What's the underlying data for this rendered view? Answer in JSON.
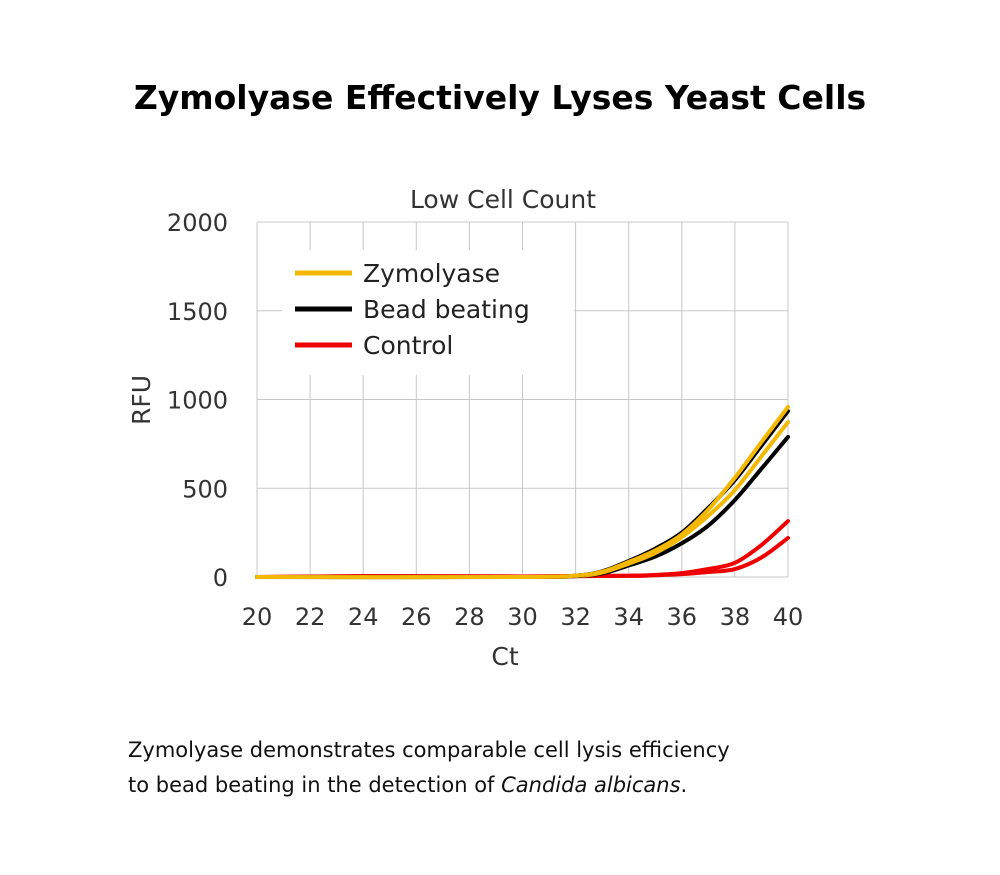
{
  "title": "Zymolyase Effectively Lyses Yeast Cells",
  "caption": {
    "line1": "Zymolyase demonstrates comparable cell lysis efficiency",
    "line2_prefix": "to bead beating in the detection of ",
    "line2_italic": "Candida albicans",
    "line2_suffix": "."
  },
  "chart_data": {
    "type": "line",
    "title": "Low Cell Count",
    "xlabel": "Ct",
    "ylabel": "RFU",
    "xlim": [
      20,
      40
    ],
    "ylim": [
      0,
      2000
    ],
    "xticks": [
      20,
      22,
      24,
      26,
      28,
      30,
      32,
      34,
      36,
      38,
      40
    ],
    "yticks": [
      0,
      500,
      1000,
      1500,
      2000
    ],
    "grid": true,
    "legend_position": "top-left",
    "legend": [
      {
        "label": "Zymolyase",
        "color": "#F5B800"
      },
      {
        "label": "Bead beating",
        "color": "#000000"
      },
      {
        "label": "Control",
        "color": "#EE0000"
      }
    ],
    "series": [
      {
        "group": "Zymolyase",
        "color": "#F5B800",
        "x": [
          20,
          30,
          32,
          33,
          34,
          35,
          36,
          37,
          38,
          39,
          40
        ],
        "y": [
          0,
          0,
          8,
          30,
          85,
          150,
          240,
          380,
          560,
          760,
          958
        ]
      },
      {
        "group": "Zymolyase",
        "color": "#F5B800",
        "x": [
          20,
          30,
          32,
          33,
          34,
          35,
          36,
          37,
          38,
          39,
          40
        ],
        "y": [
          0,
          0,
          6,
          25,
          75,
          135,
          225,
          345,
          490,
          680,
          873
        ]
      },
      {
        "group": "Bead beating",
        "color": "#000000",
        "x": [
          20,
          30,
          32,
          33,
          34,
          35,
          36,
          37,
          38,
          39,
          40
        ],
        "y": [
          0,
          0,
          8,
          32,
          90,
          160,
          250,
          390,
          546,
          740,
          935
        ]
      },
      {
        "group": "Bead beating",
        "color": "#000000",
        "x": [
          20,
          30,
          32,
          33,
          34,
          35,
          36,
          37,
          38,
          39,
          40
        ],
        "y": [
          0,
          0,
          5,
          20,
          65,
          115,
          190,
          290,
          434,
          610,
          789
        ]
      },
      {
        "group": "Control",
        "color": "#EE0000",
        "x": [
          20,
          24,
          30,
          34,
          35,
          36,
          37,
          38,
          39,
          40
        ],
        "y": [
          0,
          5,
          3,
          8,
          12,
          22,
          45,
          80,
          180,
          315
        ]
      },
      {
        "group": "Control",
        "color": "#EE0000",
        "x": [
          20,
          24,
          30,
          34,
          35,
          36,
          37,
          38,
          39,
          40
        ],
        "y": [
          0,
          5,
          3,
          6,
          10,
          16,
          28,
          45,
          110,
          220
        ]
      }
    ]
  }
}
